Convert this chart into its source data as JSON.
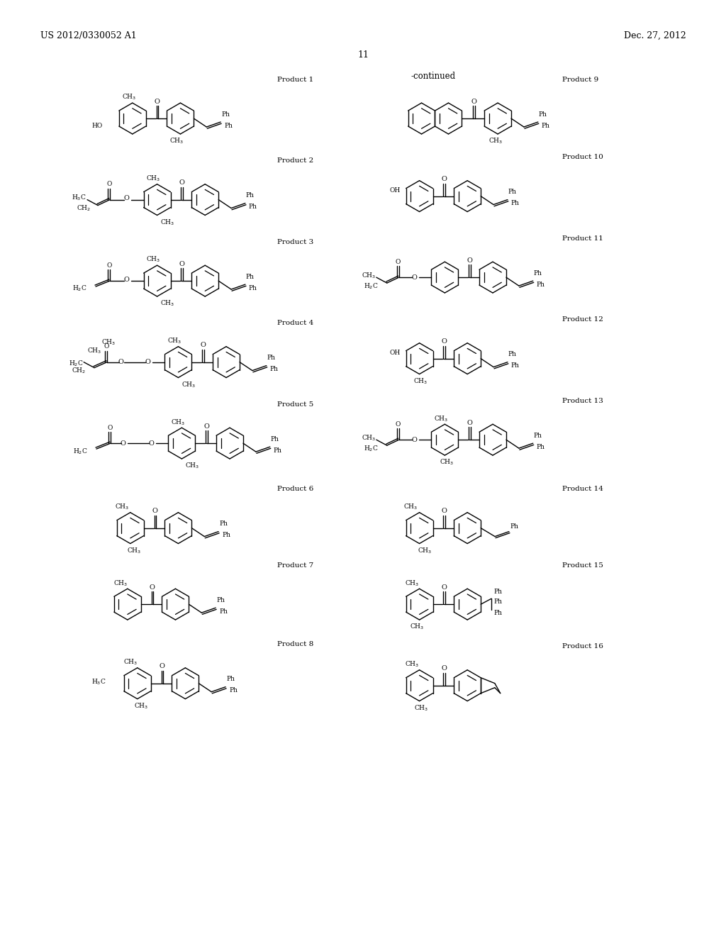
{
  "page_header_left": "US 2012/0330052 A1",
  "page_header_right": "Dec. 27, 2012",
  "page_number": "11",
  "continued_label": "-continued",
  "background_color": "#ffffff",
  "figsize": [
    10.24,
    13.2
  ],
  "dpi": 100
}
